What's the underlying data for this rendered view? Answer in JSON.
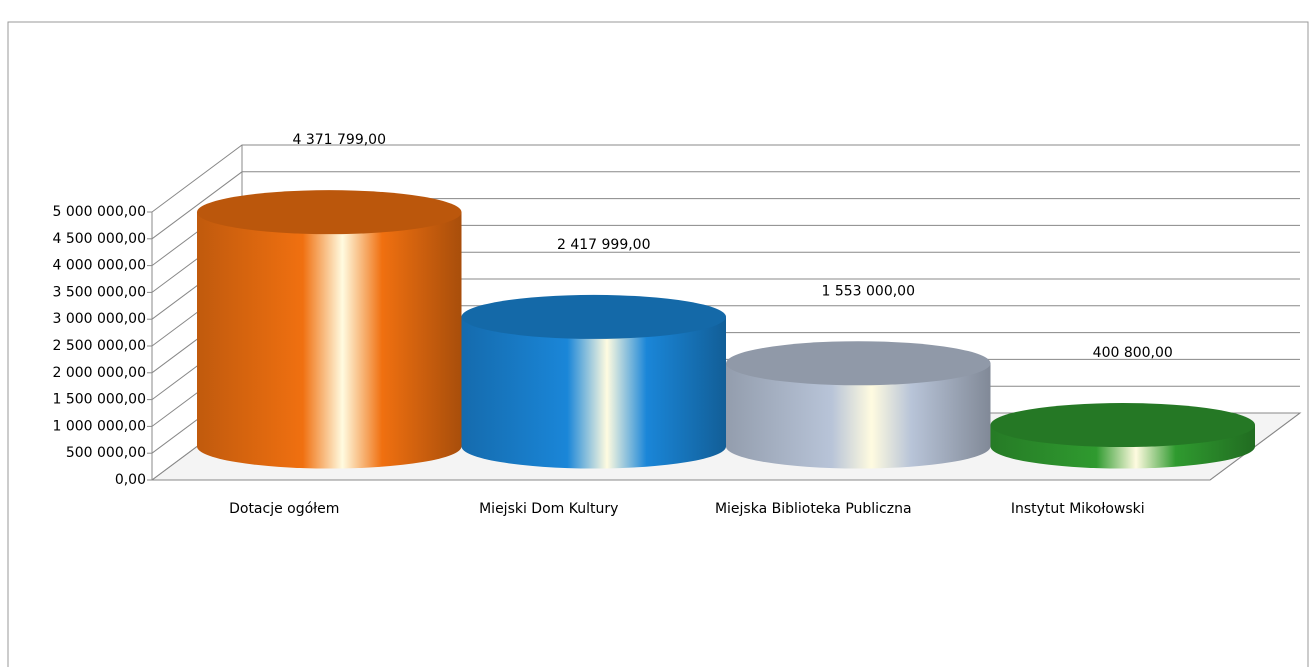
{
  "chart_data": {
    "type": "bar3d",
    "categories": [
      "Dotacje ogółem",
      "Miejski Dom Kultury",
      "Miejska Biblioteka Publiczna",
      "Instytut Mikołowski"
    ],
    "values": [
      4371799,
      2417999,
      1553000,
      400800
    ],
    "value_labels": [
      "4 371 799,00",
      "2 417 999,00",
      "1 553 000,00",
      "400 800,00"
    ],
    "colors": [
      "#f07010",
      "#1a86d8",
      "#b8c4d8",
      "#2f9a2f"
    ],
    "ylim": [
      0,
      5000000
    ],
    "yticks": [
      {
        "value": 0,
        "label": "0,00"
      },
      {
        "value": 500000,
        "label": "500 000,00"
      },
      {
        "value": 1000000,
        "label": "1 000 000,00"
      },
      {
        "value": 1500000,
        "label": "1 500 000,00"
      },
      {
        "value": 2000000,
        "label": "2 000 000,00"
      },
      {
        "value": 2500000,
        "label": "2 500 000,00"
      },
      {
        "value": 3000000,
        "label": "3 000 000,00"
      },
      {
        "value": 3500000,
        "label": "3 500 000,00"
      },
      {
        "value": 4000000,
        "label": "4 000 000,00"
      },
      {
        "value": 4500000,
        "label": "4 500 000,00"
      },
      {
        "value": 5000000,
        "label": "5 000 000,00"
      }
    ],
    "grid": true
  }
}
